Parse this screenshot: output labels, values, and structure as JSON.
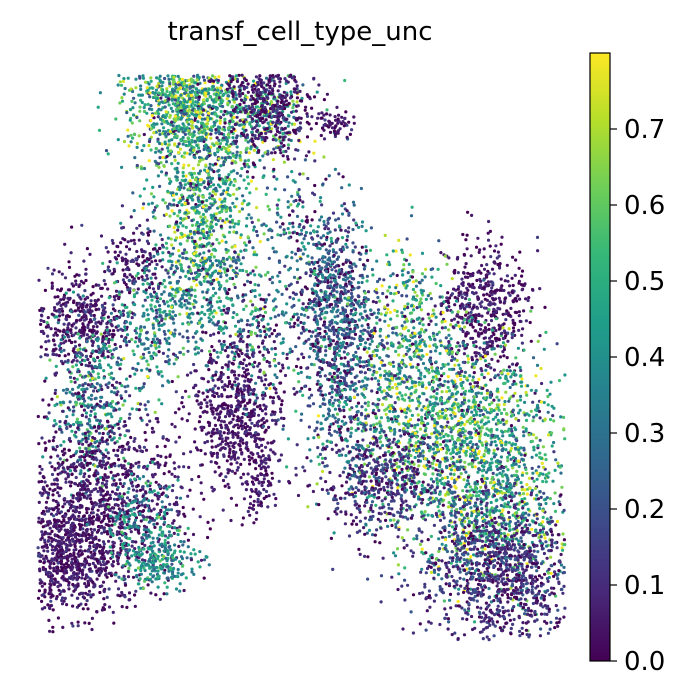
{
  "chart_data": {
    "type": "scatter",
    "title": "transf_cell_type_unc",
    "xlabel": "",
    "ylabel": "",
    "axes_visible": false,
    "colormap": "viridis",
    "colorbar": {
      "range": [
        0.0,
        0.8
      ],
      "ticks": [
        0.0,
        0.1,
        0.2,
        0.3,
        0.4,
        0.5,
        0.6,
        0.7
      ],
      "tick_labels": [
        "0.0",
        "0.1",
        "0.2",
        "0.3",
        "0.4",
        "0.5",
        "0.6",
        "0.7"
      ],
      "placement": "right"
    },
    "colors": {
      "viridis_stops": [
        "#440154",
        "#482878",
        "#3e4989",
        "#31688e",
        "#26828e",
        "#1f9e89",
        "#35b779",
        "#6ece58",
        "#b5de2b",
        "#fde725"
      ]
    },
    "note_on_points": "Thousands of UMAP-style cells; clusters summarised as regions with approximate uncertainty levels",
    "clusters": [
      {
        "id": "top-left-branch",
        "mean_value": 0.45,
        "spread": 0.2
      },
      {
        "id": "top-right-tip",
        "mean_value": 0.05,
        "spread": 0.05
      },
      {
        "id": "left-middle",
        "mean_value": 0.05,
        "spread": 0.05
      },
      {
        "id": "left-column",
        "mean_value": 0.35,
        "spread": 0.15
      },
      {
        "id": "bottom-left-blob",
        "mean_value": 0.05,
        "spread": 0.05
      },
      {
        "id": "bottom-left-tail",
        "mean_value": 0.4,
        "spread": 0.1
      },
      {
        "id": "center-blob",
        "mean_value": 0.05,
        "spread": 0.04
      },
      {
        "id": "center-stem",
        "mean_value": 0.3,
        "spread": 0.2
      },
      {
        "id": "right-upper-left",
        "mean_value": 0.2,
        "spread": 0.15
      },
      {
        "id": "right-top-tip",
        "mean_value": 0.05,
        "spread": 0.05
      },
      {
        "id": "right-main",
        "mean_value": 0.45,
        "spread": 0.2
      },
      {
        "id": "right-bottom",
        "mean_value": 0.1,
        "spread": 0.08
      }
    ]
  }
}
